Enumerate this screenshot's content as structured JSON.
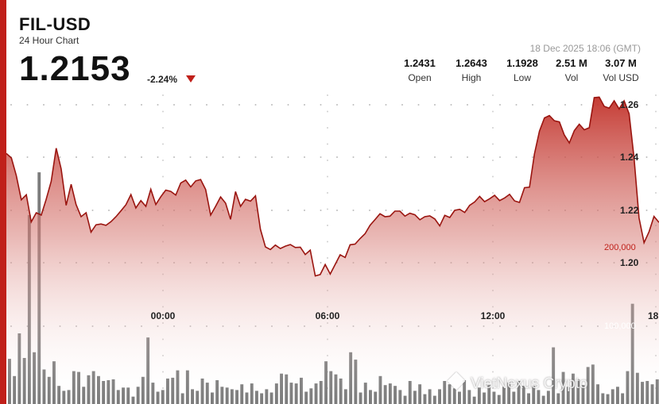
{
  "header": {
    "pair": "FIL-USD",
    "subtitle": "24 Hour Chart",
    "price": "1.2153",
    "change": "-2.24%",
    "timestamp": "18 Dec 2025 18:06 (GMT)"
  },
  "stats": [
    {
      "value": "1.2431",
      "label": "Open"
    },
    {
      "value": "1.2643",
      "label": "High"
    },
    {
      "value": "1.1928",
      "label": "Low"
    },
    {
      "value": "2.51 M",
      "label": "Vol"
    },
    {
      "value": "3.07 M",
      "label": "Vol USD"
    }
  ],
  "watermark": "VietNexus Crypto",
  "colors": {
    "accent": "#c0201a",
    "area_top": "#c2322a",
    "volume_bar": "#6e6e6e"
  },
  "chart_data": {
    "type": "area",
    "x_range": [
      "18:00",
      "18:06"
    ],
    "x_ticks": [
      "00:00",
      "06:00",
      "12:00",
      "18:"
    ],
    "y_ticks": [
      "1.26",
      "1.24",
      "1.22",
      "1.20"
    ],
    "y_range": [
      1.1928,
      1.2643
    ],
    "volume_ticks": [
      "200,000",
      "100,000"
    ],
    "price_series": [
      1.2415,
      1.2398,
      1.2331,
      1.2239,
      1.2258,
      1.2155,
      1.219,
      1.2181,
      1.2241,
      1.2309,
      1.2435,
      1.2357,
      1.2218,
      1.2298,
      1.2221,
      1.2175,
      1.219,
      1.2116,
      1.2144,
      1.2147,
      1.2142,
      1.2156,
      1.2175,
      1.2197,
      1.222,
      1.2259,
      1.2208,
      1.2236,
      1.2214,
      1.2279,
      1.2221,
      1.2251,
      1.2276,
      1.2271,
      1.2257,
      1.2303,
      1.2314,
      1.2288,
      1.2311,
      1.2316,
      1.2278,
      1.2181,
      1.2214,
      1.225,
      1.2226,
      1.2165,
      1.227,
      1.2214,
      1.2241,
      1.2234,
      1.2254,
      1.2127,
      1.206,
      1.205,
      1.2067,
      1.2054,
      1.2063,
      1.2069,
      1.2058,
      1.2059,
      1.2031,
      1.2048,
      1.195,
      1.1955,
      1.1993,
      1.1957,
      1.1993,
      1.203,
      1.202,
      1.2068,
      1.2071,
      1.2092,
      1.211,
      1.2142,
      1.2164,
      1.2186,
      1.2175,
      1.2177,
      1.2196,
      1.2196,
      1.2177,
      1.2188,
      1.2182,
      1.2163,
      1.2175,
      1.2178,
      1.2166,
      1.214,
      1.218,
      1.2172,
      1.2199,
      1.2203,
      1.2191,
      1.2218,
      1.2231,
      1.2252,
      1.2232,
      1.2243,
      1.2256,
      1.2236,
      1.2246,
      1.226,
      1.2235,
      1.2229,
      1.2285,
      1.2287,
      1.2413,
      1.25,
      1.255,
      1.2559,
      1.2539,
      1.2535,
      1.2485,
      1.2455,
      1.2502,
      1.2526,
      1.2505,
      1.2513,
      1.2627,
      1.2629,
      1.2594,
      1.2587,
      1.2615,
      1.2584,
      1.2615,
      1.2566,
      1.2395,
      1.217,
      1.2076,
      1.2118,
      1.2176,
      1.2153
    ],
    "volume_series": [
      55000,
      34000,
      86000,
      56000,
      230000,
      63000,
      282000,
      42000,
      33000,
      52000,
      22000,
      16000,
      17000,
      40000,
      39000,
      21000,
      35000,
      40000,
      34000,
      28000,
      29000,
      30000,
      17000,
      20000,
      20000,
      9000,
      21000,
      33000,
      81000,
      26000,
      15000,
      17000,
      31000,
      32000,
      41000,
      13000,
      41000,
      18000,
      16000,
      31000,
      26000,
      14000,
      29000,
      21000,
      20000,
      18000,
      17000,
      24000,
      14000,
      25000,
      16000,
      13000,
      18000,
      14000,
      25000,
      37000,
      36000,
      26000,
      25000,
      32000,
      15000,
      19000,
      25000,
      28000,
      52000,
      40000,
      36000,
      31000,
      18000,
      63000,
      54000,
      14000,
      26000,
      17000,
      15000,
      34000,
      23000,
      25000,
      22000,
      17000,
      10000,
      28000,
      16000,
      24000,
      12000,
      18000,
      10000,
      18000,
      28000,
      24000,
      19000,
      15000,
      29000,
      17000,
      9000,
      20000,
      14000,
      23000,
      15000,
      11000,
      21000,
      26000,
      15000,
      28000,
      22000,
      13000,
      22000,
      17000,
      10000,
      16000,
      69000,
      13000,
      39000,
      21000,
      37000,
      30000,
      23000,
      45000,
      48000,
      24000,
      13000,
      12000,
      18000,
      21000,
      13000,
      40000,
      122000,
      38000,
      27000,
      28000,
      24000,
      30000
    ]
  }
}
